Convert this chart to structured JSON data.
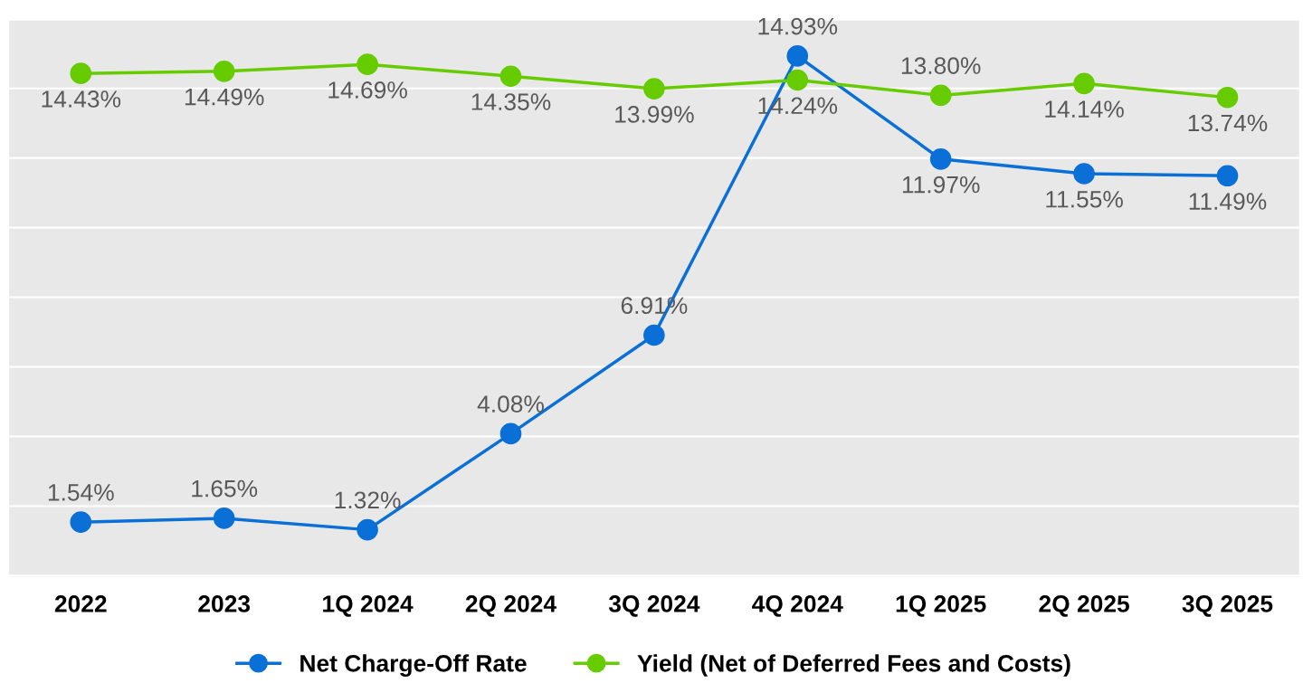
{
  "chart_data": {
    "type": "line",
    "categories": [
      "2022",
      "2023",
      "1Q 2024",
      "2Q 2024",
      "3Q 2024",
      "4Q 2024",
      "1Q 2025",
      "2Q 2025",
      "3Q 2025"
    ],
    "series": [
      {
        "name": "Net Charge-Off Rate",
        "color": "#0a6fd6",
        "values": [
          1.54,
          1.65,
          1.32,
          4.08,
          6.91,
          14.93,
          11.97,
          11.55,
          11.49
        ],
        "value_labels": [
          "1.54%",
          "1.65%",
          "1.32%",
          "4.08%",
          "6.91%",
          "14.93%",
          "11.97%",
          "11.55%",
          "11.49%"
        ]
      },
      {
        "name": "Yield (Net of Deferred Fees and Costs)",
        "color": "#66cc00",
        "values": [
          14.43,
          14.49,
          14.69,
          14.35,
          13.99,
          14.24,
          13.8,
          14.14,
          13.74
        ],
        "value_labels": [
          "14.43%",
          "14.49%",
          "14.69%",
          "14.35%",
          "13.99%",
          "14.24%",
          "13.80%",
          "14.14%",
          "13.74%"
        ]
      }
    ],
    "grid": "y",
    "legend": "bottom",
    "marker": "circle",
    "line_style": "solid",
    "tick_labels": "x"
  }
}
